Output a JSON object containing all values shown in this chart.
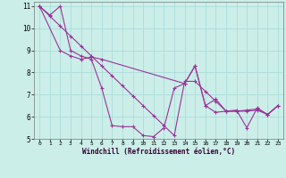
{
  "xlabel": "Windchill (Refroidissement éolien,°C)",
  "background_color": "#cceee8",
  "grid_color": "#aaddda",
  "line_color": "#993399",
  "xlim": [
    -0.5,
    23.5
  ],
  "ylim": [
    5,
    11.2
  ],
  "xticks": [
    0,
    1,
    2,
    3,
    4,
    5,
    6,
    7,
    8,
    9,
    10,
    11,
    12,
    13,
    14,
    15,
    16,
    17,
    18,
    19,
    20,
    21,
    22,
    23
  ],
  "yticks": [
    5,
    6,
    7,
    8,
    9,
    10,
    11
  ],
  "line1_x": [
    0,
    1,
    2,
    3,
    4,
    5,
    6,
    7,
    8,
    9,
    10,
    11,
    12,
    13,
    14,
    15,
    16,
    17,
    18,
    19,
    20,
    21,
    22,
    23
  ],
  "line1_y": [
    11.0,
    10.6,
    11.0,
    9.0,
    8.75,
    8.6,
    7.3,
    5.6,
    5.55,
    5.55,
    5.15,
    5.1,
    5.5,
    7.3,
    7.5,
    8.3,
    6.5,
    6.2,
    6.25,
    6.3,
    5.5,
    6.4,
    6.1,
    6.5
  ],
  "line2_x": [
    0,
    1,
    2,
    3,
    4,
    5,
    6,
    7,
    8,
    9,
    10,
    11,
    12,
    13,
    14,
    15,
    16,
    17,
    18,
    19,
    20,
    21,
    22,
    23
  ],
  "line2_y": [
    11.0,
    10.55,
    10.1,
    9.65,
    9.2,
    8.75,
    8.3,
    7.85,
    7.4,
    6.95,
    6.5,
    6.05,
    5.6,
    5.15,
    7.6,
    7.6,
    7.15,
    6.7,
    6.25,
    6.25,
    6.25,
    6.3,
    6.1,
    6.5
  ],
  "line3_x": [
    0,
    2,
    3,
    4,
    5,
    6,
    14,
    15,
    16,
    17,
    18,
    19,
    20,
    21,
    22,
    23
  ],
  "line3_y": [
    11.0,
    9.0,
    8.75,
    8.6,
    8.7,
    8.6,
    7.5,
    8.3,
    6.5,
    6.8,
    6.25,
    6.25,
    6.3,
    6.35,
    6.1,
    6.5
  ],
  "marker": "+"
}
